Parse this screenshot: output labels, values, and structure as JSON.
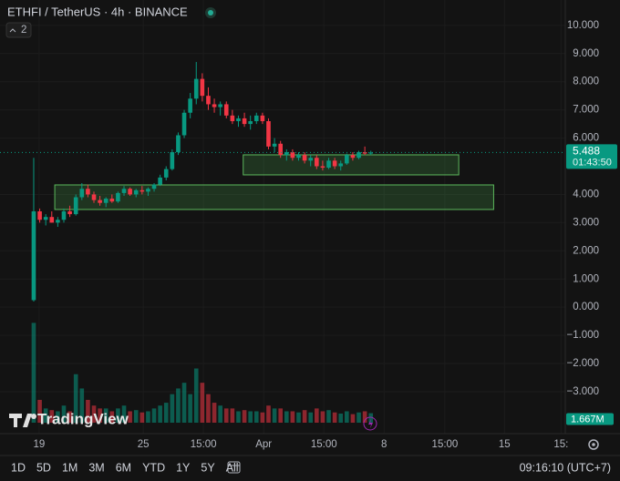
{
  "chart_data": {
    "type": "candlestick",
    "title": "ETHFI / TetherUS · 4h · BINANCE",
    "indicator_badge": "2",
    "watermark": "TradingView",
    "up_color": "#089981",
    "down_color": "#f23645",
    "open": [
      0.25,
      3.4,
      3.1,
      3.2,
      3.0,
      3.1,
      3.4,
      3.3,
      3.9,
      4.2,
      4.0,
      3.8,
      3.7,
      3.85,
      3.75,
      4.05,
      4.2,
      4.0,
      4.15,
      4.1,
      4.2,
      4.35,
      4.6,
      4.9,
      5.5,
      6.1,
      6.9,
      7.4,
      8.1,
      7.5,
      7.2,
      7.1,
      7.2,
      6.8,
      6.6,
      6.7,
      6.5,
      6.6,
      6.8,
      6.6,
      5.7,
      5.8,
      5.4,
      5.5,
      5.3,
      5.4,
      5.2,
      5.3,
      5.0,
      4.95,
      5.2,
      5.0,
      5.1,
      5.4,
      5.3,
      5.5,
      5.45
    ],
    "high": [
      5.3,
      3.5,
      3.3,
      3.4,
      3.2,
      3.5,
      3.6,
      4.0,
      4.4,
      4.35,
      4.1,
      3.95,
      3.9,
      4.0,
      4.1,
      4.3,
      4.25,
      4.2,
      4.3,
      4.25,
      4.4,
      4.7,
      5.0,
      5.6,
      6.2,
      7.0,
      7.6,
      8.7,
      8.3,
      7.8,
      7.4,
      7.3,
      7.3,
      7.0,
      6.8,
      6.9,
      6.8,
      6.9,
      6.9,
      6.7,
      6.0,
      5.9,
      5.6,
      5.6,
      5.5,
      5.5,
      5.4,
      5.4,
      5.2,
      5.3,
      5.3,
      5.2,
      5.45,
      5.5,
      5.55,
      5.7,
      5.55
    ],
    "low": [
      0.2,
      3.0,
      2.9,
      3.0,
      2.85,
      3.0,
      3.2,
      3.25,
      3.8,
      3.9,
      3.7,
      3.6,
      3.55,
      3.7,
      3.7,
      3.95,
      3.95,
      3.9,
      4.0,
      3.95,
      4.1,
      4.3,
      4.5,
      4.85,
      5.4,
      6.0,
      6.7,
      7.2,
      7.3,
      7.0,
      6.9,
      6.8,
      6.7,
      6.5,
      6.4,
      6.4,
      6.3,
      6.5,
      6.5,
      5.6,
      5.5,
      5.3,
      5.2,
      5.2,
      5.2,
      5.1,
      5.0,
      4.9,
      4.85,
      4.9,
      4.9,
      4.85,
      5.05,
      5.2,
      5.25,
      5.4,
      5.4
    ],
    "close": [
      3.4,
      3.1,
      3.2,
      3.0,
      3.1,
      3.4,
      3.3,
      3.9,
      4.2,
      4.0,
      3.8,
      3.7,
      3.85,
      3.75,
      4.05,
      4.2,
      4.0,
      4.15,
      4.1,
      4.2,
      4.35,
      4.6,
      4.9,
      5.5,
      6.1,
      6.9,
      7.4,
      8.1,
      7.5,
      7.2,
      7.1,
      7.2,
      6.8,
      6.6,
      6.7,
      6.5,
      6.6,
      6.8,
      6.6,
      5.7,
      5.8,
      5.4,
      5.5,
      5.3,
      5.4,
      5.2,
      5.3,
      5.0,
      4.95,
      5.2,
      5.0,
      5.1,
      5.4,
      5.3,
      5.5,
      5.45,
      5.488
    ],
    "volume": [
      17.5,
      4,
      2.5,
      2.2,
      2,
      3,
      2,
      8.5,
      6,
      4,
      3,
      2.5,
      2.5,
      2,
      2.5,
      3,
      2,
      2.2,
      1.8,
      2,
      2.5,
      3,
      3.5,
      5,
      6,
      7,
      5,
      9.5,
      7,
      5,
      3.5,
      3,
      2.5,
      2.5,
      2,
      2.2,
      2,
      2,
      1.8,
      3,
      2.5,
      2.5,
      2,
      2,
      1.8,
      2.2,
      1.8,
      2.5,
      2,
      2.2,
      1.8,
      1.6,
      2,
      1.5,
      1.8,
      2,
      1.667
    ],
    "volume_lim": [
      0,
      19
    ],
    "volume_label": {
      "value": 1.667,
      "label": "1.667M"
    },
    "last_price": {
      "value": 5.488,
      "label": "5.488"
    },
    "countdown": "01:43:50",
    "zones": [
      {
        "from": 34.8,
        "to": 70.6,
        "low": 4.694,
        "high": 5.405
      },
      {
        "from": 3.5,
        "to": 76.4,
        "low": 3.466,
        "high": 4.338
      }
    ],
    "ylim": [
      -4.1,
      10.9
    ],
    "yticks": [
      {
        "value": 10,
        "label": "10.000"
      },
      {
        "value": 9,
        "label": "9.000"
      },
      {
        "value": 8,
        "label": "8.000"
      },
      {
        "value": 7,
        "label": "7.000"
      },
      {
        "value": 6,
        "label": "6.000"
      },
      {
        "value": 4,
        "label": "4.000"
      },
      {
        "value": 3,
        "label": "3.000"
      },
      {
        "value": 2,
        "label": "2.000"
      },
      {
        "value": 1,
        "label": "1.000"
      },
      {
        "value": 0,
        "label": "0.000"
      },
      {
        "value": -1,
        "label": "−1.000"
      },
      {
        "value": -2,
        "label": "−2.000"
      },
      {
        "value": -3,
        "label": "−3.000"
      }
    ],
    "xlim": [
      -5.6,
      88.3
    ],
    "xticks": [
      {
        "value": 0.9,
        "label": "19"
      },
      {
        "value": 18.2,
        "label": "25"
      },
      {
        "value": 28.2,
        "label": "15:00"
      },
      {
        "value": 38.2,
        "label": "Apr"
      },
      {
        "value": 48.2,
        "label": "15:00"
      },
      {
        "value": 58.2,
        "label": "8"
      },
      {
        "value": 68.3,
        "label": "15:00"
      },
      {
        "value": 78.2,
        "label": "15"
      },
      {
        "value": 87.6,
        "label": "15:"
      }
    ],
    "grid": true
  },
  "toolbar": {
    "ranges": [
      "1D",
      "5D",
      "1M",
      "3M",
      "6M",
      "YTD",
      "1Y",
      "5Y",
      "All"
    ],
    "clock": "09:16:10 (UTC+7)"
  }
}
